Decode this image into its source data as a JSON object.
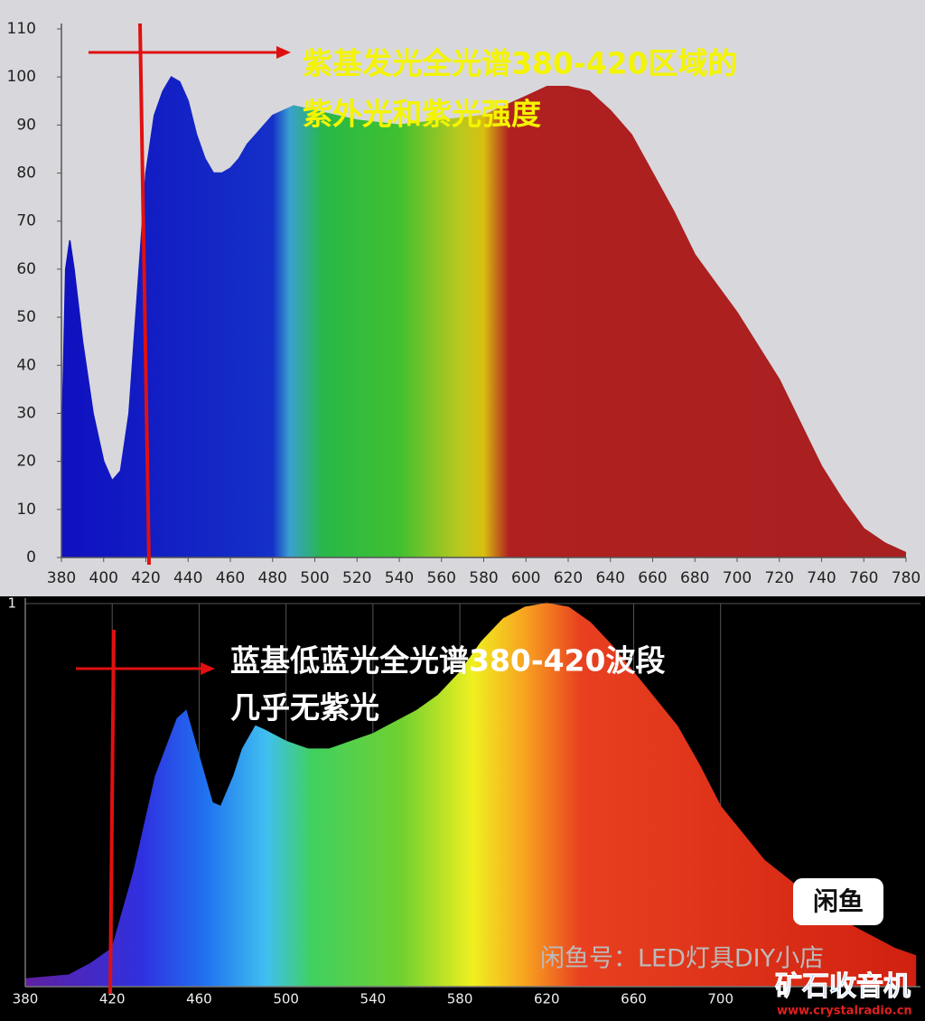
{
  "chart_data": [
    {
      "type": "area",
      "annotations": [
        "紫基发光全光谱380-420区域的",
        "紫外光和紫光强度"
      ],
      "x": [
        380,
        382,
        384,
        386,
        390,
        395,
        400,
        404,
        408,
        412,
        416,
        420,
        424,
        428,
        432,
        436,
        440,
        444,
        448,
        452,
        456,
        460,
        464,
        468,
        472,
        476,
        480,
        490,
        500,
        510,
        520,
        540,
        560,
        580,
        590,
        600,
        610,
        620,
        630,
        640,
        650,
        660,
        670,
        680,
        690,
        700,
        710,
        720,
        730,
        740,
        750,
        760,
        770,
        780
      ],
      "values": [
        20,
        60,
        66,
        60,
        45,
        30,
        20,
        16,
        18,
        30,
        55,
        80,
        92,
        97,
        100,
        99,
        95,
        88,
        83,
        80,
        80,
        81,
        83,
        86,
        88,
        90,
        92,
        94,
        93,
        92,
        91,
        90,
        91,
        92,
        94,
        96,
        98,
        98,
        97,
        93,
        88,
        80,
        72,
        63,
        57,
        51,
        44,
        37,
        28,
        19,
        12,
        6,
        3,
        1
      ],
      "xlim": [
        380,
        780
      ],
      "xticks": [
        380,
        400,
        420,
        440,
        460,
        480,
        500,
        520,
        540,
        560,
        580,
        600,
        620,
        640,
        660,
        680,
        700,
        720,
        740,
        760,
        780
      ],
      "ylim": [
        0,
        110
      ],
      "yticks": [
        0,
        10,
        20,
        30,
        40,
        50,
        60,
        70,
        80,
        90,
        100,
        110
      ],
      "grid": false
    },
    {
      "type": "area",
      "annotations": [
        "蓝基低蓝光全光谱380-420波段",
        "几乎无紫光"
      ],
      "x": [
        380,
        400,
        410,
        420,
        430,
        440,
        450,
        454,
        460,
        466,
        470,
        476,
        480,
        486,
        490,
        500,
        510,
        520,
        530,
        540,
        550,
        560,
        570,
        580,
        590,
        600,
        610,
        620,
        630,
        640,
        650,
        660,
        670,
        680,
        690,
        700,
        710,
        720,
        740,
        760,
        780,
        790
      ],
      "values": [
        0.02,
        0.03,
        0.06,
        0.1,
        0.3,
        0.55,
        0.7,
        0.72,
        0.6,
        0.48,
        0.47,
        0.55,
        0.62,
        0.68,
        0.67,
        0.64,
        0.62,
        0.62,
        0.64,
        0.66,
        0.69,
        0.72,
        0.76,
        0.82,
        0.9,
        0.96,
        0.99,
        1.0,
        0.99,
        0.95,
        0.89,
        0.82,
        0.75,
        0.68,
        0.58,
        0.47,
        0.4,
        0.33,
        0.24,
        0.16,
        0.1,
        0.08
      ],
      "xlim": [
        380,
        792
      ],
      "xticks": [
        380,
        420,
        460,
        500,
        540,
        580,
        620,
        660,
        700
      ],
      "ylim": [
        0,
        1
      ],
      "yticks": [
        1
      ],
      "grid": true
    }
  ],
  "watermarks": {
    "shop": "闲鱼号：LED灯具DIY小店",
    "logo": "闲鱼",
    "site_name": "矿石收音机",
    "site_url": "www.crystalradio.cn"
  }
}
